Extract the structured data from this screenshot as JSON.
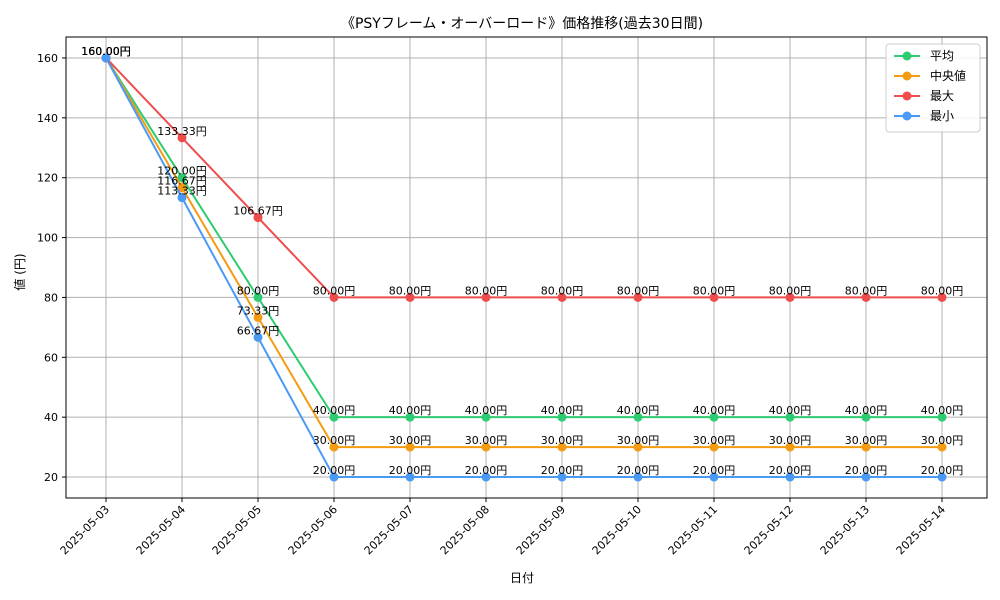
{
  "chart_data": {
    "type": "line",
    "title": "《PSYフレーム・オーバーロード》価格推移(過去30日間)",
    "xlabel": "日付",
    "ylabel": "値 (円)",
    "categories": [
      "2025-05-03",
      "2025-05-04",
      "2025-05-05",
      "2025-05-06",
      "2025-05-07",
      "2025-05-08",
      "2025-05-09",
      "2025-05-10",
      "2025-05-11",
      "2025-05-12",
      "2025-05-13",
      "2025-05-14"
    ],
    "ylim": [
      13,
      167
    ],
    "yticks": [
      20,
      40,
      60,
      80,
      100,
      120,
      140,
      160
    ],
    "grid": true,
    "legend_position": "top-right",
    "value_suffix": "円",
    "series": [
      {
        "name": "平均",
        "color": "#2ecc71",
        "values": [
          160,
          120,
          80,
          40,
          40,
          40,
          40,
          40,
          40,
          40,
          40,
          40
        ]
      },
      {
        "name": "中央値",
        "color": "#f39c12",
        "values": [
          160,
          116.67,
          73.33,
          30,
          30,
          30,
          30,
          30,
          30,
          30,
          30,
          30
        ]
      },
      {
        "name": "最大",
        "color": "#ef4c4c",
        "values": [
          160,
          133.33,
          106.67,
          80,
          80,
          80,
          80,
          80,
          80,
          80,
          80,
          80
        ]
      },
      {
        "name": "最小",
        "color": "#4a9af5",
        "values": [
          160,
          113.33,
          66.67,
          20,
          20,
          20,
          20,
          20,
          20,
          20,
          20,
          20
        ]
      }
    ]
  }
}
